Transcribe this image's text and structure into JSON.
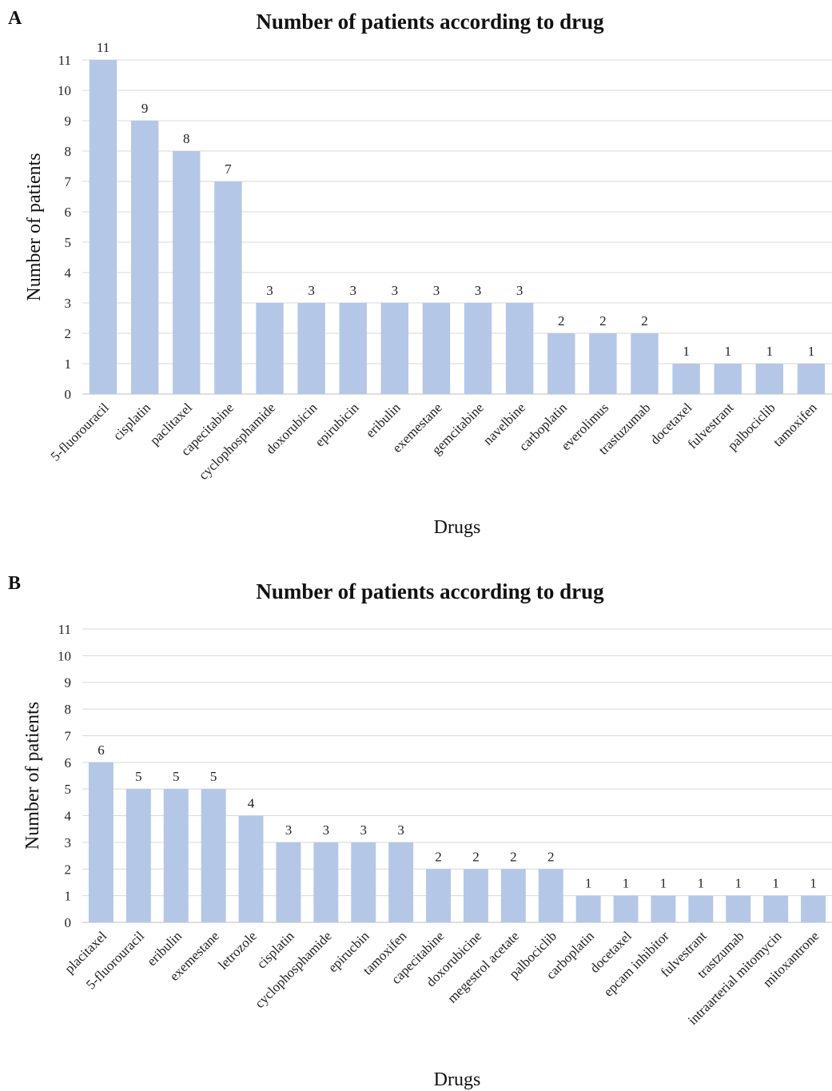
{
  "chart_data": [
    {
      "type": "bar",
      "panel_label": "A",
      "title": "Number of patients according to drug",
      "xlabel": "Drugs",
      "ylabel": "Number of patients",
      "ylim": [
        0,
        11
      ],
      "yticks": [
        0,
        1,
        2,
        3,
        4,
        5,
        6,
        7,
        8,
        9,
        10,
        11
      ],
      "grid": true,
      "bar_color": "#b4c7e7",
      "categories": [
        "5-fluorouracil",
        "cisplatin",
        "paclitaxel",
        "capecitabine",
        "cyclophosphamide",
        "doxorubicin",
        "epirubicin",
        "eribulin",
        "exemestane",
        "gemcitabine",
        "navelbine",
        "carboplatin",
        "everolimus",
        "trastuzumab",
        "docetaxel",
        "fulvestrant",
        "palbociclib",
        "tamoxifen"
      ],
      "values": [
        11,
        9,
        8,
        7,
        3,
        3,
        3,
        3,
        3,
        3,
        3,
        2,
        2,
        2,
        1,
        1,
        1,
        1
      ]
    },
    {
      "type": "bar",
      "panel_label": "B",
      "title": "Number of patients according to drug",
      "xlabel": "Drugs",
      "ylabel": "Number of patients",
      "ylim": [
        0,
        11
      ],
      "yticks": [
        0,
        1,
        2,
        3,
        4,
        5,
        6,
        7,
        8,
        9,
        10,
        11
      ],
      "grid": true,
      "bar_color": "#b4c7e7",
      "categories": [
        "placitaxel",
        "5-fluorouracil",
        "eribulin",
        "exemestane",
        "letrozole",
        "cisplatin",
        "cyclophosphamide",
        "epirucbin",
        "tamoxifen",
        "capecitabine",
        "doxorubicine",
        "megestrol acetate",
        "palbociclib",
        "carboplatin",
        "docetaxel",
        "epcam inhibitor",
        "fulvestrant",
        "trastzumab",
        "intraarterial mitomycin",
        "mitoxantrone"
      ],
      "values": [
        6,
        5,
        5,
        5,
        4,
        3,
        3,
        3,
        3,
        2,
        2,
        2,
        2,
        1,
        1,
        1,
        1,
        1,
        1,
        1
      ]
    }
  ]
}
